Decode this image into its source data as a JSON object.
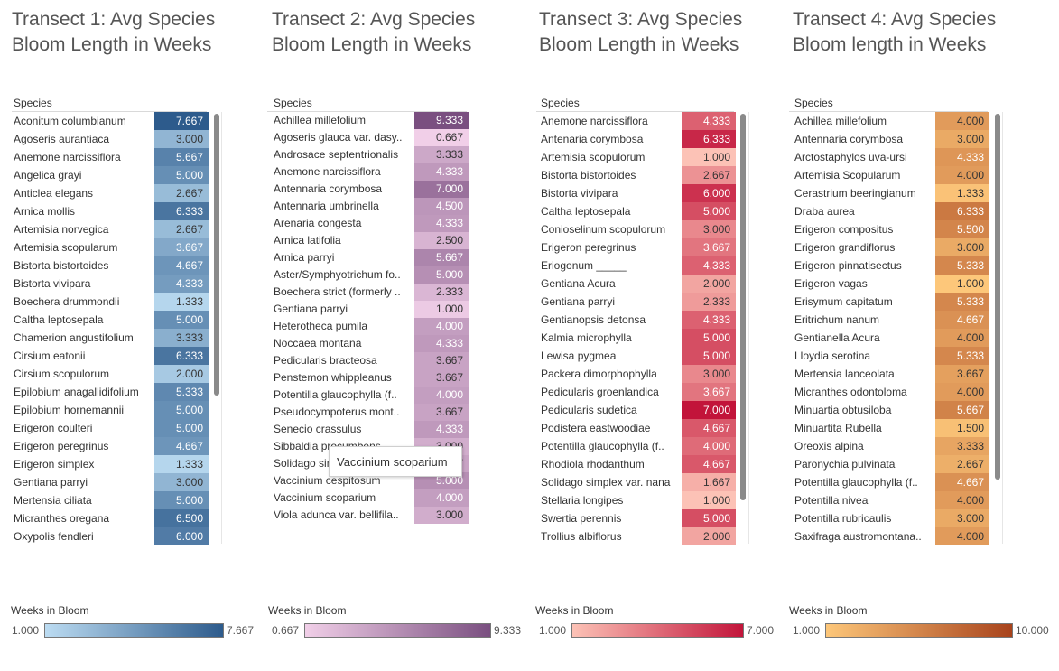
{
  "chart_data": [
    {
      "type": "table",
      "title": "Transect 1: Avg Species Bloom Length in Weeks",
      "column_header": "Species",
      "legend": {
        "title": "Weeks in Bloom",
        "min": "1.000",
        "max": "7.667",
        "min_value": 1.0,
        "max_value": 7.667,
        "color_low": "#bcdcf2",
        "color_high": "#2d5b8c"
      },
      "rows": [
        {
          "species": "Aconitum columbianum",
          "value": "7.667"
        },
        {
          "species": "Agoseris aurantiaca",
          "value": "3.000"
        },
        {
          "species": "Anemone narcissiflora",
          "value": "5.667"
        },
        {
          "species": "Angelica grayi",
          "value": "5.000"
        },
        {
          "species": "Anticlea elegans",
          "value": "2.667"
        },
        {
          "species": "Arnica mollis",
          "value": "6.333"
        },
        {
          "species": "Artemisia norvegica",
          "value": "2.667"
        },
        {
          "species": "Artemisia scopularum",
          "value": "3.667"
        },
        {
          "species": "Bistorta bistortoides",
          "value": "4.667"
        },
        {
          "species": "Bistorta vivipara",
          "value": "4.333"
        },
        {
          "species": "Boechera drummondii",
          "value": "1.333"
        },
        {
          "species": "Caltha leptosepala",
          "value": "5.000"
        },
        {
          "species": "Chamerion angustifolium",
          "value": "3.333"
        },
        {
          "species": "Cirsium eatonii",
          "value": "6.333"
        },
        {
          "species": "Cirsium scopulorum",
          "value": "2.000"
        },
        {
          "species": "Epilobium anagallidifolium",
          "value": "5.333"
        },
        {
          "species": "Epilobium hornemannii",
          "value": "5.000"
        },
        {
          "species": "Erigeron coulteri",
          "value": "5.000"
        },
        {
          "species": "Erigeron peregrinus",
          "value": "4.667"
        },
        {
          "species": "Erigeron simplex",
          "value": "1.333"
        },
        {
          "species": "Gentiana parryi",
          "value": "3.000"
        },
        {
          "species": "Mertensia ciliata",
          "value": "5.000"
        },
        {
          "species": "Micranthes oregana",
          "value": "6.500"
        },
        {
          "species": "Oxypolis fendleri",
          "value": "6.000"
        }
      ]
    },
    {
      "type": "table",
      "title": "Transect 2: Avg Species Bloom Length in Weeks",
      "column_header": "Species",
      "legend": {
        "title": "Weeks in Bloom",
        "min": "0.667",
        "max": "9.333",
        "min_value": 0.667,
        "max_value": 9.333,
        "color_low": "#f1cfe8",
        "color_high": "#7a4f80"
      },
      "rows": [
        {
          "species": "Achillea millefolium",
          "value": "9.333"
        },
        {
          "species": "Agoseris glauca var. dasy..",
          "value": "0.667"
        },
        {
          "species": "Androsace septentrionalis",
          "value": "3.333"
        },
        {
          "species": "Anemone narcissiflora",
          "value": "4.333"
        },
        {
          "species": "Antennaria corymbosa",
          "value": "7.000"
        },
        {
          "species": "Antennaria umbrinella",
          "value": "4.500"
        },
        {
          "species": "Arenaria congesta",
          "value": "4.333"
        },
        {
          "species": "Arnica latifolia",
          "value": "2.500"
        },
        {
          "species": "Arnica parryi",
          "value": "5.667"
        },
        {
          "species": "Aster/Symphyotrichum fo..",
          "value": "5.000"
        },
        {
          "species": "Boechera strict (formerly ..",
          "value": "2.333"
        },
        {
          "species": "Gentiana parryi",
          "value": "1.000"
        },
        {
          "species": "Heterotheca pumila",
          "value": "4.000"
        },
        {
          "species": "Noccaea montana",
          "value": "4.333"
        },
        {
          "species": "Pedicularis bracteosa",
          "value": "3.667"
        },
        {
          "species": "Penstemon whippleanus",
          "value": "3.667"
        },
        {
          "species": "Potentilla glaucophylla (f..",
          "value": "4.000"
        },
        {
          "species": "Pseudocympoterus mont..",
          "value": "3.667"
        },
        {
          "species": "Senecio crassulus",
          "value": "4.333"
        },
        {
          "species": "Sibbaldia procumbens",
          "value": "3.000"
        },
        {
          "species": "Solidago simplex",
          "value": "3.667"
        },
        {
          "species": "Vaccinium cespitosum",
          "value": "5.000"
        },
        {
          "species": "Vaccinium scoparium",
          "value": "4.000"
        },
        {
          "species": "Viola adunca var. bellifila..",
          "value": "3.000"
        }
      ],
      "tooltip": "Vaccinium scoparium"
    },
    {
      "type": "table",
      "title": "Transect 3: Avg Species Bloom Length in Weeks",
      "column_header": "Species",
      "legend": {
        "title": "Weeks in Bloom",
        "min": "1.000",
        "max": "7.000",
        "min_value": 1.0,
        "max_value": 7.0,
        "color_low": "#fcc2b6",
        "color_high": "#c2143a"
      },
      "rows": [
        {
          "species": "Anemone narcissiflora",
          "value": "4.333"
        },
        {
          "species": "Antenaria corymbosa",
          "value": "6.333"
        },
        {
          "species": "Artemisia scopulorum",
          "value": "1.000"
        },
        {
          "species": "Bistorta bistortoides",
          "value": "2.667"
        },
        {
          "species": "Bistorta vivipara",
          "value": "6.000"
        },
        {
          "species": "Caltha leptosepala",
          "value": "5.000"
        },
        {
          "species": "Conioselinum scopulorum",
          "value": "3.000"
        },
        {
          "species": "Erigeron peregrinus",
          "value": "3.667"
        },
        {
          "species": "Eriogonum _____",
          "value": "4.333"
        },
        {
          "species": "Gentiana Acura",
          "value": "2.000"
        },
        {
          "species": "Gentiana parryi",
          "value": "2.333"
        },
        {
          "species": "Gentianopsis detonsa",
          "value": "4.333"
        },
        {
          "species": "Kalmia microphylla",
          "value": "5.000"
        },
        {
          "species": "Lewisa pygmea",
          "value": "5.000"
        },
        {
          "species": "Packera dimorphophylla",
          "value": "3.000"
        },
        {
          "species": "Pedicularis groenlandica",
          "value": "3.667"
        },
        {
          "species": "Pedicularis sudetica",
          "value": "7.000"
        },
        {
          "species": "Podistera eastwoodiae",
          "value": "4.667"
        },
        {
          "species": "Potentilla glaucophylla (f..",
          "value": "4.000"
        },
        {
          "species": "Rhodiola rhodanthum",
          "value": "4.667"
        },
        {
          "species": "Solidago simplex var. nana",
          "value": "1.667"
        },
        {
          "species": "Stellaria longipes",
          "value": "1.000"
        },
        {
          "species": "Swertia perennis",
          "value": "5.000"
        },
        {
          "species": "Trollius albiflorus",
          "value": "2.000"
        }
      ]
    },
    {
      "type": "table",
      "title": "Transect 4: Avg Species Bloom length in Weeks",
      "column_header": "Species",
      "legend": {
        "title": "Weeks in Bloom",
        "min": "1.000",
        "max": "10.000",
        "min_value": 1.0,
        "max_value": 10.0,
        "color_low": "#fdc77a",
        "color_high": "#a8431c"
      },
      "rows": [
        {
          "species": "Achillea millefolium",
          "value": "4.000"
        },
        {
          "species": "Antennaria corymbosa",
          "value": "3.000"
        },
        {
          "species": "Arctostaphylos uva-ursi",
          "value": "4.333"
        },
        {
          "species": "Artemisia Scopularum",
          "value": "4.000"
        },
        {
          "species": "Cerastrium beeringianum",
          "value": "1.333"
        },
        {
          "species": "Draba aurea",
          "value": "6.333"
        },
        {
          "species": "Erigeron compositus",
          "value": "5.500"
        },
        {
          "species": "Erigeron grandiflorus",
          "value": "3.000"
        },
        {
          "species": "Erigeron pinnatisectus",
          "value": "5.333"
        },
        {
          "species": "Erigeron vagas",
          "value": "1.000"
        },
        {
          "species": "Erisymum capitatum",
          "value": "5.333"
        },
        {
          "species": "Eritrichum nanum",
          "value": "4.667"
        },
        {
          "species": "Gentianella Acura",
          "value": "4.000"
        },
        {
          "species": "Lloydia serotina",
          "value": "5.333"
        },
        {
          "species": "Mertensia lanceolata",
          "value": "3.667"
        },
        {
          "species": "Micranthes odontoloma",
          "value": "4.000"
        },
        {
          "species": "Minuartia obtusiloba",
          "value": "5.667"
        },
        {
          "species": "Minuartita Rubella",
          "value": "1.500"
        },
        {
          "species": "Oreoxis alpina",
          "value": "3.333"
        },
        {
          "species": "Paronychia pulvinata",
          "value": "2.667"
        },
        {
          "species": "Potentilla glaucophylla (f..",
          "value": "4.667"
        },
        {
          "species": "Potentilla nivea",
          "value": "4.000"
        },
        {
          "species": "Potentilla rubricaulis",
          "value": "3.000"
        },
        {
          "species": "Saxifraga austromontana..",
          "value": "4.000"
        }
      ]
    }
  ]
}
